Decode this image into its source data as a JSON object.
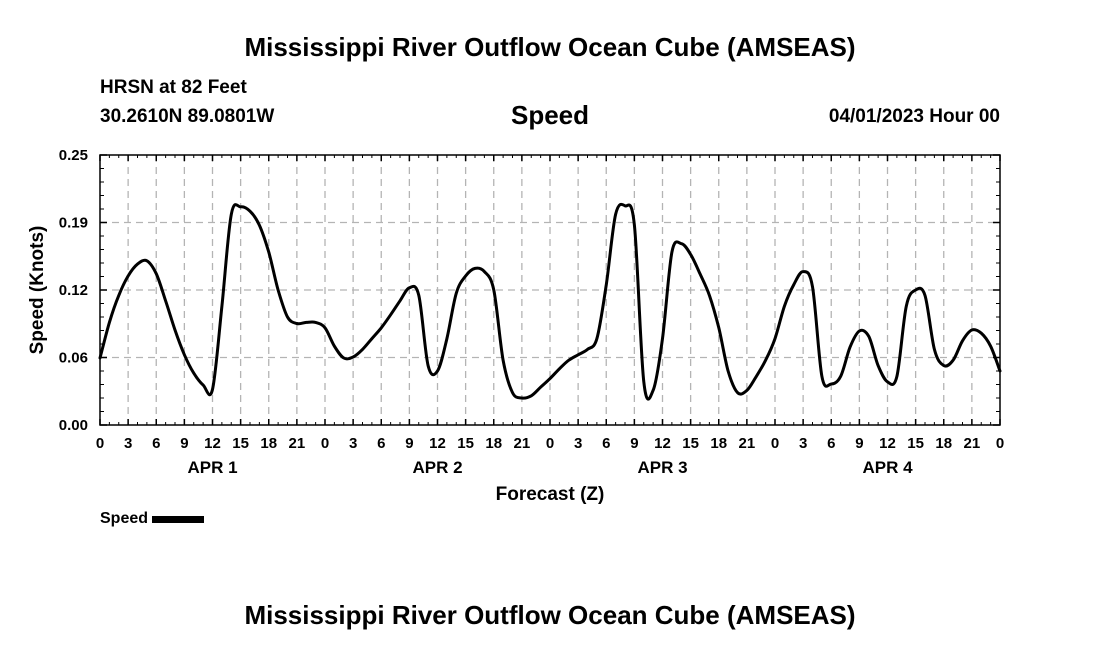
{
  "header": {
    "title": "Mississippi River Outflow Ocean Cube (AMSEAS)",
    "station": "HRSN at 82 Feet",
    "coords": "30.2610N  89.0801W",
    "variable": "Speed",
    "date": "04/01/2023 Hour 00"
  },
  "footer": {
    "title": "Mississippi River Outflow Ocean Cube (AMSEAS)"
  },
  "legend": {
    "label": "Speed",
    "color": "#000000"
  },
  "chart_data": {
    "type": "line",
    "title": "Speed",
    "xlabel": "Forecast (Z)",
    "ylabel": "Speed (Knots)",
    "ylim": [
      0,
      0.25
    ],
    "xlim": [
      0,
      96
    ],
    "grid": true,
    "legend_position": "bottom-left",
    "y_ticks": [
      "0.00",
      "0.06",
      "0.12",
      "0.19",
      "0.25"
    ],
    "x_tick_labels": [
      "0",
      "3",
      "6",
      "9",
      "12",
      "15",
      "18",
      "21",
      "0",
      "3",
      "6",
      "9",
      "12",
      "15",
      "18",
      "21",
      "0",
      "3",
      "6",
      "9",
      "12",
      "15",
      "18",
      "21",
      "0",
      "3",
      "6",
      "9",
      "12",
      "15",
      "18",
      "21",
      "0"
    ],
    "day_labels": [
      {
        "label": "APR 1",
        "hour": 12
      },
      {
        "label": "APR 2",
        "hour": 36
      },
      {
        "label": "APR 3",
        "hour": 60
      },
      {
        "label": "APR 4",
        "hour": 84
      }
    ],
    "series": [
      {
        "name": "Speed",
        "x": [
          0,
          1,
          2,
          3,
          4,
          5,
          6,
          7,
          8,
          9,
          10,
          11,
          12,
          13,
          14,
          15,
          16,
          17,
          18,
          19,
          20,
          21,
          22,
          23,
          24,
          25,
          26,
          27,
          28,
          29,
          30,
          31,
          32,
          33,
          34,
          35,
          36,
          37,
          38,
          39,
          40,
          41,
          42,
          43,
          44,
          45,
          46,
          47,
          48,
          49,
          50,
          51,
          52,
          53,
          54,
          55,
          56,
          57,
          58,
          59,
          60,
          61,
          62,
          63,
          64,
          65,
          66,
          67,
          68,
          69,
          70,
          71,
          72,
          73,
          74,
          75,
          76,
          77,
          78,
          79,
          80,
          81,
          82,
          83,
          84,
          85,
          86,
          87,
          88,
          89,
          90,
          91,
          92,
          93,
          94,
          95,
          96
        ],
        "values": [
          0.062,
          0.095,
          0.12,
          0.138,
          0.149,
          0.152,
          0.14,
          0.115,
          0.088,
          0.065,
          0.048,
          0.037,
          0.033,
          0.11,
          0.195,
          0.202,
          0.198,
          0.185,
          0.16,
          0.125,
          0.1,
          0.094,
          0.095,
          0.095,
          0.09,
          0.073,
          0.062,
          0.063,
          0.07,
          0.08,
          0.09,
          0.102,
          0.115,
          0.127,
          0.12,
          0.055,
          0.05,
          0.08,
          0.122,
          0.138,
          0.145,
          0.142,
          0.125,
          0.06,
          0.03,
          0.025,
          0.027,
          0.035,
          0.043,
          0.052,
          0.06,
          0.065,
          0.07,
          0.08,
          0.13,
          0.195,
          0.203,
          0.185,
          0.04,
          0.032,
          0.08,
          0.16,
          0.168,
          0.158,
          0.14,
          0.12,
          0.09,
          0.05,
          0.03,
          0.032,
          0.045,
          0.06,
          0.08,
          0.11,
          0.13,
          0.142,
          0.128,
          0.045,
          0.038,
          0.045,
          0.072,
          0.087,
          0.082,
          0.055,
          0.04,
          0.045,
          0.11,
          0.125,
          0.12,
          0.07,
          0.055,
          0.06,
          0.078,
          0.088,
          0.085,
          0.073,
          0.05
        ]
      }
    ]
  }
}
